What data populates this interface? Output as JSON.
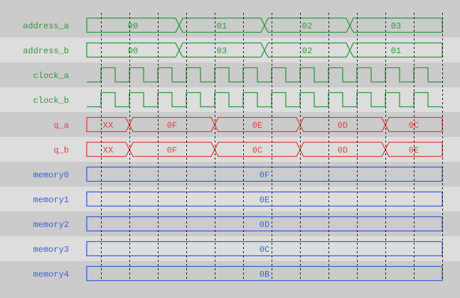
{
  "colors": {
    "row_dark": "#cbcbcb",
    "row_light": "#dddddd",
    "green": "#2e9a3e",
    "red": "#e04040",
    "blue": "#3a62d8",
    "grid": "#222222"
  },
  "time_span": [
    0,
    12.5
  ],
  "signals": [
    {
      "name": "address_a",
      "type": "bus",
      "color": "green",
      "segments": [
        {
          "value": "00",
          "start": 0,
          "end": 3.25
        },
        {
          "value": "01",
          "start": 3.25,
          "end": 6.25
        },
        {
          "value": "02",
          "start": 6.25,
          "end": 9.25
        },
        {
          "value": "03",
          "start": 9.25,
          "end": 12.5
        }
      ]
    },
    {
      "name": "address_b",
      "type": "bus",
      "color": "green",
      "segments": [
        {
          "value": "00",
          "start": 0,
          "end": 3.25
        },
        {
          "value": "03",
          "start": 3.25,
          "end": 6.25
        },
        {
          "value": "02",
          "start": 6.25,
          "end": 9.25
        },
        {
          "value": "01",
          "start": 9.25,
          "end": 12.5
        }
      ]
    },
    {
      "name": "clock_a",
      "type": "clock",
      "color": "green",
      "first_rise": 0.5,
      "period": 1,
      "high_time": 0.5
    },
    {
      "name": "clock_b",
      "type": "clock",
      "color": "green",
      "first_rise": 0.5,
      "period": 1,
      "high_time": 0.5
    },
    {
      "name": "q_a",
      "type": "bus",
      "color": "red",
      "segments": [
        {
          "value": "XX",
          "start": 0,
          "end": 1.5
        },
        {
          "value": "0F",
          "start": 1.5,
          "end": 4.5
        },
        {
          "value": "0E",
          "start": 4.5,
          "end": 7.5
        },
        {
          "value": "0D",
          "start": 7.5,
          "end": 10.5
        },
        {
          "value": "0C",
          "start": 10.5,
          "end": 12.5
        }
      ]
    },
    {
      "name": "q_b",
      "type": "bus",
      "color": "red",
      "segments": [
        {
          "value": "XX",
          "start": 0,
          "end": 1.5
        },
        {
          "value": "0F",
          "start": 1.5,
          "end": 4.5
        },
        {
          "value": "0C",
          "start": 4.5,
          "end": 7.5
        },
        {
          "value": "0D",
          "start": 7.5,
          "end": 10.5
        },
        {
          "value": "0E",
          "start": 10.5,
          "end": 12.5
        }
      ]
    },
    {
      "name": "memory0",
      "type": "bus",
      "color": "blue",
      "segments": [
        {
          "value": "0F",
          "start": 0,
          "end": 12.5
        }
      ]
    },
    {
      "name": "memory1",
      "type": "bus",
      "color": "blue",
      "segments": [
        {
          "value": "0E",
          "start": 0,
          "end": 12.5
        }
      ]
    },
    {
      "name": "memory2",
      "type": "bus",
      "color": "blue",
      "segments": [
        {
          "value": "0D",
          "start": 0,
          "end": 12.5
        }
      ]
    },
    {
      "name": "memory3",
      "type": "bus",
      "color": "blue",
      "segments": [
        {
          "value": "0C",
          "start": 0,
          "end": 12.5
        }
      ]
    },
    {
      "name": "memory4",
      "type": "bus",
      "color": "blue",
      "segments": [
        {
          "value": "0B",
          "start": 0,
          "end": 12.5
        }
      ]
    }
  ],
  "grid_times": [
    0.5,
    1.5,
    2.5,
    3.5,
    4.5,
    5.5,
    6.5,
    7.5,
    8.5,
    9.5,
    10.5,
    11.5,
    12.5
  ]
}
